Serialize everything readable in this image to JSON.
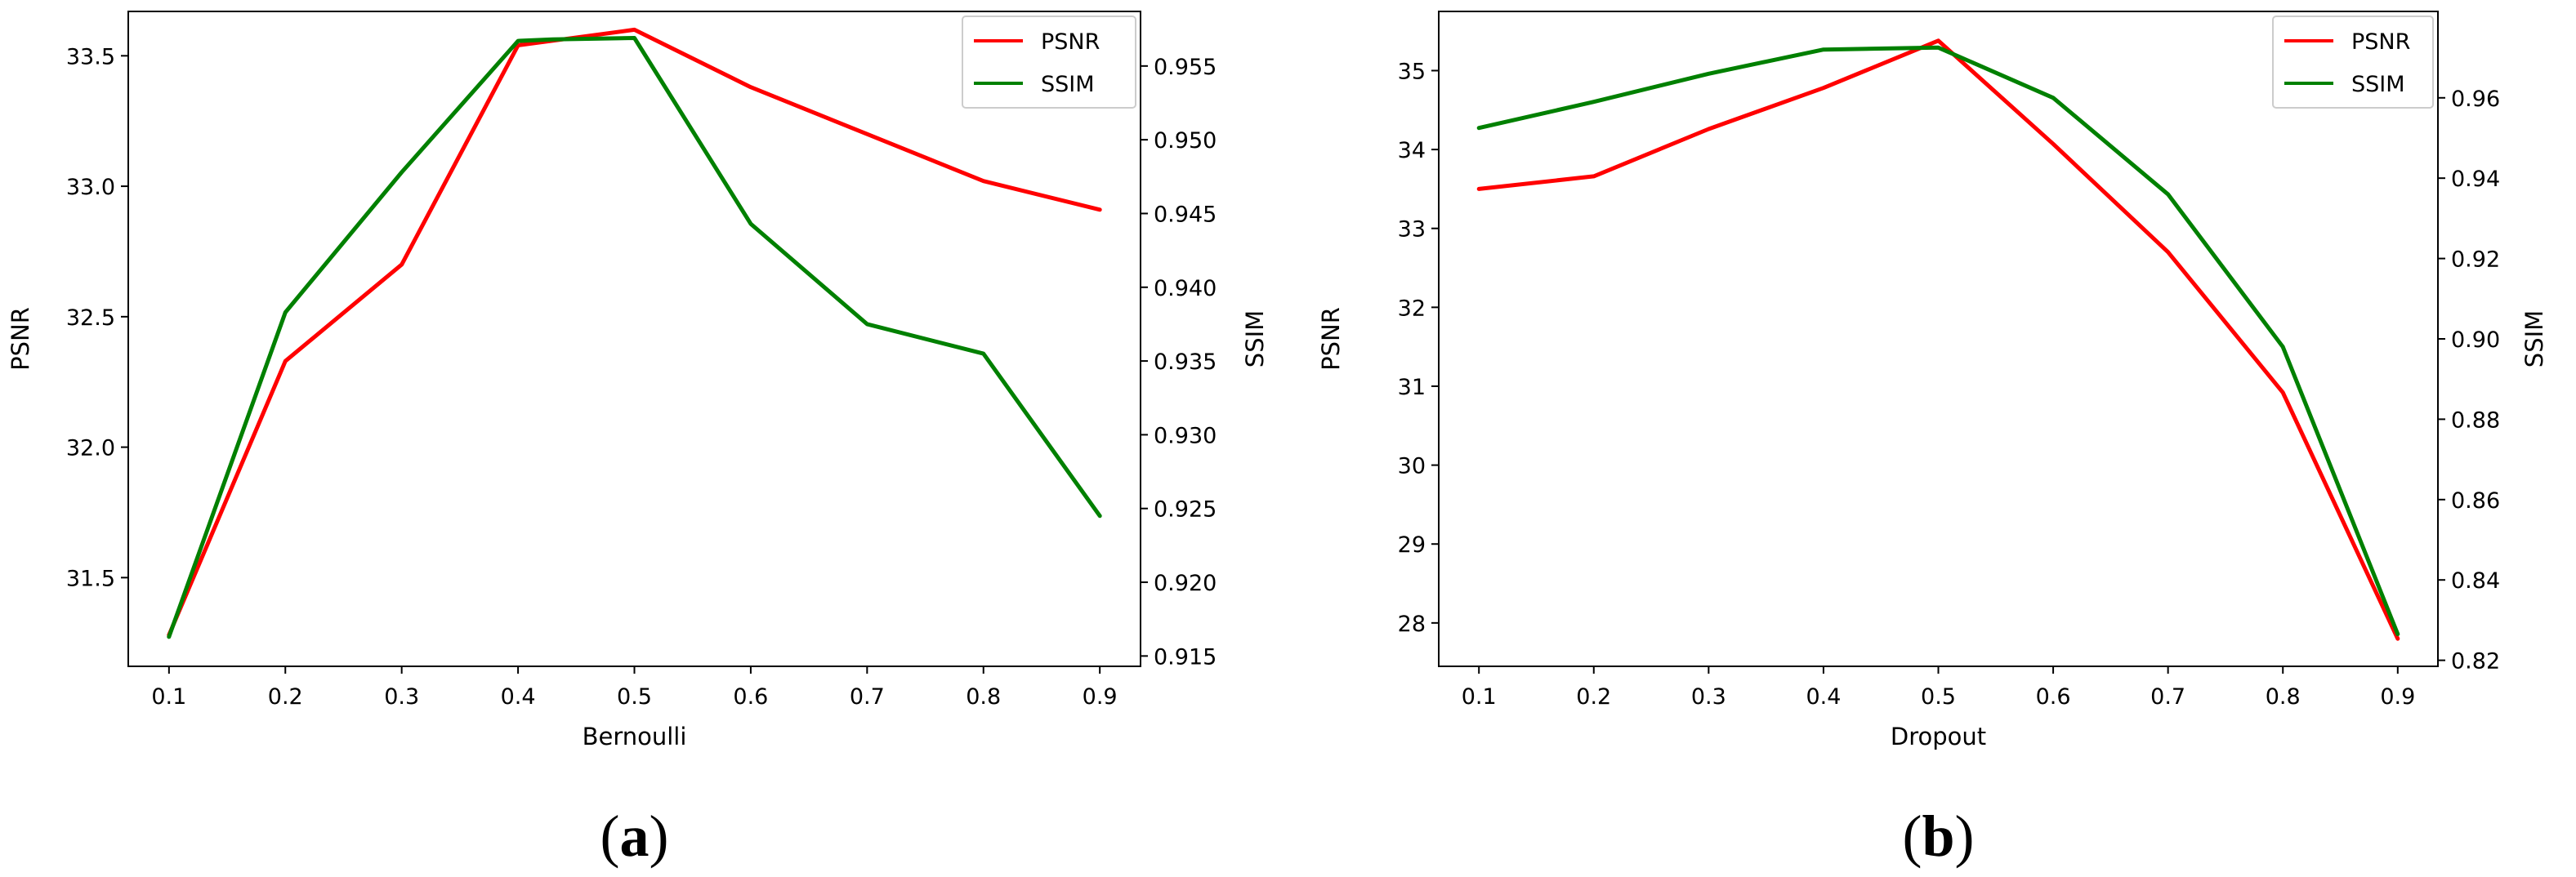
{
  "chart_data": [
    {
      "type": "line",
      "panel_label": "a",
      "xlabel": "Bernoulli",
      "ylabel_left": "PSNR",
      "ylabel_right": "SSIM",
      "x": [
        0.1,
        0.2,
        0.3,
        0.4,
        0.5,
        0.6,
        0.7,
        0.8,
        0.9
      ],
      "xticks": [
        "0.1",
        "0.2",
        "0.3",
        "0.4",
        "0.5",
        "0.6",
        "0.7",
        "0.8",
        "0.9"
      ],
      "y_left_lim": [
        31.16,
        33.67
      ],
      "y_left_ticks": [
        "31.5",
        "32.0",
        "32.5",
        "33.0",
        "33.5"
      ],
      "y_right_lim": [
        0.9143,
        0.9587
      ],
      "y_right_ticks": [
        "0.915",
        "0.920",
        "0.925",
        "0.930",
        "0.935",
        "0.940",
        "0.945",
        "0.950",
        "0.955"
      ],
      "grid": false,
      "legend_position": "top-right",
      "series": [
        {
          "name": "PSNR",
          "axis": "left",
          "color": "#ff0000",
          "x": [
            0.1,
            0.2,
            0.3,
            0.4,
            0.5,
            0.6,
            0.7,
            0.8,
            0.9
          ],
          "values": [
            31.28,
            32.33,
            32.7,
            33.54,
            33.6,
            33.38,
            33.2,
            33.02,
            32.91
          ]
        },
        {
          "name": "SSIM",
          "axis": "right",
          "color": "#008000",
          "x": [
            0.1,
            0.2,
            0.3,
            0.4,
            0.43,
            0.5,
            0.6,
            0.7,
            0.8,
            0.9
          ],
          "values": [
            0.9163,
            0.9383,
            0.9478,
            0.9567,
            0.9568,
            0.9569,
            0.9443,
            0.9375,
            0.9355,
            0.9245
          ]
        }
      ]
    },
    {
      "type": "line",
      "panel_label": "b",
      "xlabel": "Dropout",
      "ylabel_left": "PSNR",
      "ylabel_right": "SSIM",
      "x": [
        0.1,
        0.2,
        0.3,
        0.4,
        0.5,
        0.6,
        0.7,
        0.8,
        0.9
      ],
      "xticks": [
        "0.1",
        "0.2",
        "0.3",
        "0.4",
        "0.5",
        "0.6",
        "0.7",
        "0.8",
        "0.9"
      ],
      "y_left_lim": [
        27.45,
        35.75
      ],
      "y_left_ticks": [
        "28",
        "29",
        "30",
        "31",
        "32",
        "33",
        "34",
        "35"
      ],
      "y_right_lim": [
        0.8185,
        0.9815
      ],
      "y_right_ticks": [
        "0.82",
        "0.84",
        "0.86",
        "0.88",
        "0.90",
        "0.92",
        "0.94",
        "0.96"
      ],
      "grid": false,
      "legend_position": "top-right",
      "series": [
        {
          "name": "PSNR",
          "axis": "left",
          "color": "#ff0000",
          "x": [
            0.1,
            0.2,
            0.3,
            0.4,
            0.5,
            0.6,
            0.7,
            0.8,
            0.9
          ],
          "values": [
            33.5,
            33.66,
            34.26,
            34.78,
            35.38,
            34.07,
            32.7,
            30.92,
            27.8
          ]
        },
        {
          "name": "SSIM",
          "axis": "right",
          "color": "#008000",
          "x": [
            0.1,
            0.2,
            0.3,
            0.4,
            0.5,
            0.6,
            0.7,
            0.8,
            0.9
          ],
          "values": [
            0.9525,
            0.959,
            0.966,
            0.972,
            0.9725,
            0.96,
            0.936,
            0.898,
            0.8265
          ]
        }
      ]
    }
  ]
}
